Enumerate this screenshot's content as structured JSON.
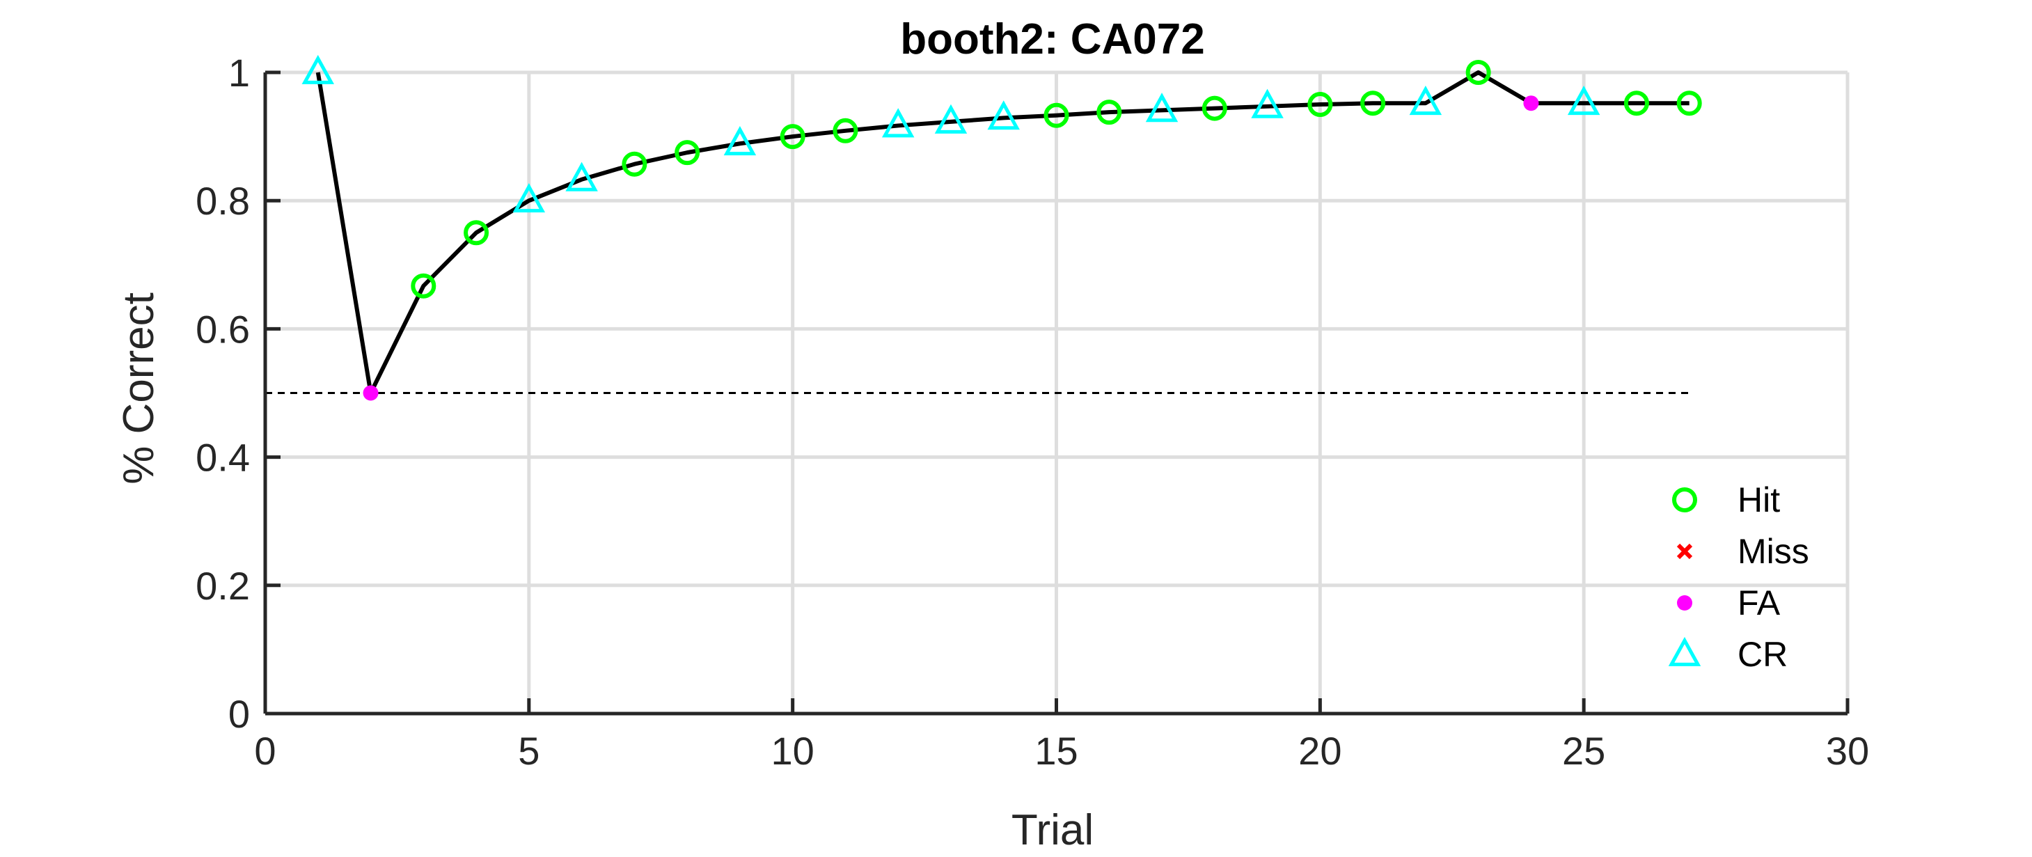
{
  "chart_data": {
    "type": "line",
    "title": "booth2: CA072",
    "xlabel": "Trial",
    "ylabel": "% Correct",
    "xlim": [
      0,
      30
    ],
    "ylim": [
      0,
      1
    ],
    "xticks": [
      "0",
      "5",
      "10",
      "15",
      "20",
      "25",
      "30"
    ],
    "yticks": [
      "0",
      "0.2",
      "0.4",
      "0.6",
      "0.8",
      "1"
    ],
    "grid": true,
    "legend_position": "bottom-right",
    "chance_level": 0.5,
    "chance_line_x": [
      0,
      27
    ],
    "series": [
      {
        "x": [
          1,
          2,
          3,
          4,
          5,
          6,
          7,
          8,
          9,
          10,
          11,
          12,
          13,
          14,
          15,
          16,
          17,
          18,
          19,
          20,
          21,
          22,
          23,
          24,
          25,
          26,
          27
        ],
        "values": [
          1.0,
          0.5,
          0.667,
          0.75,
          0.8,
          0.833,
          0.857,
          0.875,
          0.889,
          0.9,
          0.909,
          0.917,
          0.923,
          0.929,
          0.933,
          0.938,
          0.941,
          0.944,
          0.947,
          0.95,
          0.952,
          0.952,
          1.0,
          0.952,
          0.952,
          0.952,
          0.952
        ],
        "outcomes": [
          "CR",
          "FA",
          "Hit",
          "Hit",
          "CR",
          "CR",
          "Hit",
          "Hit",
          "CR",
          "Hit",
          "Hit",
          "CR",
          "CR",
          "CR",
          "Hit",
          "Hit",
          "CR",
          "Hit",
          "CR",
          "Hit",
          "Hit",
          "CR",
          "Hit",
          "FA",
          "CR",
          "Hit",
          "Hit"
        ]
      }
    ],
    "legend": [
      {
        "label": "Hit",
        "marker": "circle",
        "color": "#00ff00"
      },
      {
        "label": "Miss",
        "marker": "x",
        "color": "#ff0000"
      },
      {
        "label": "FA",
        "marker": "dot",
        "color": "#ff00ff"
      },
      {
        "label": "CR",
        "marker": "triangle",
        "color": "#00ffff"
      }
    ],
    "line_color": "#000000"
  }
}
